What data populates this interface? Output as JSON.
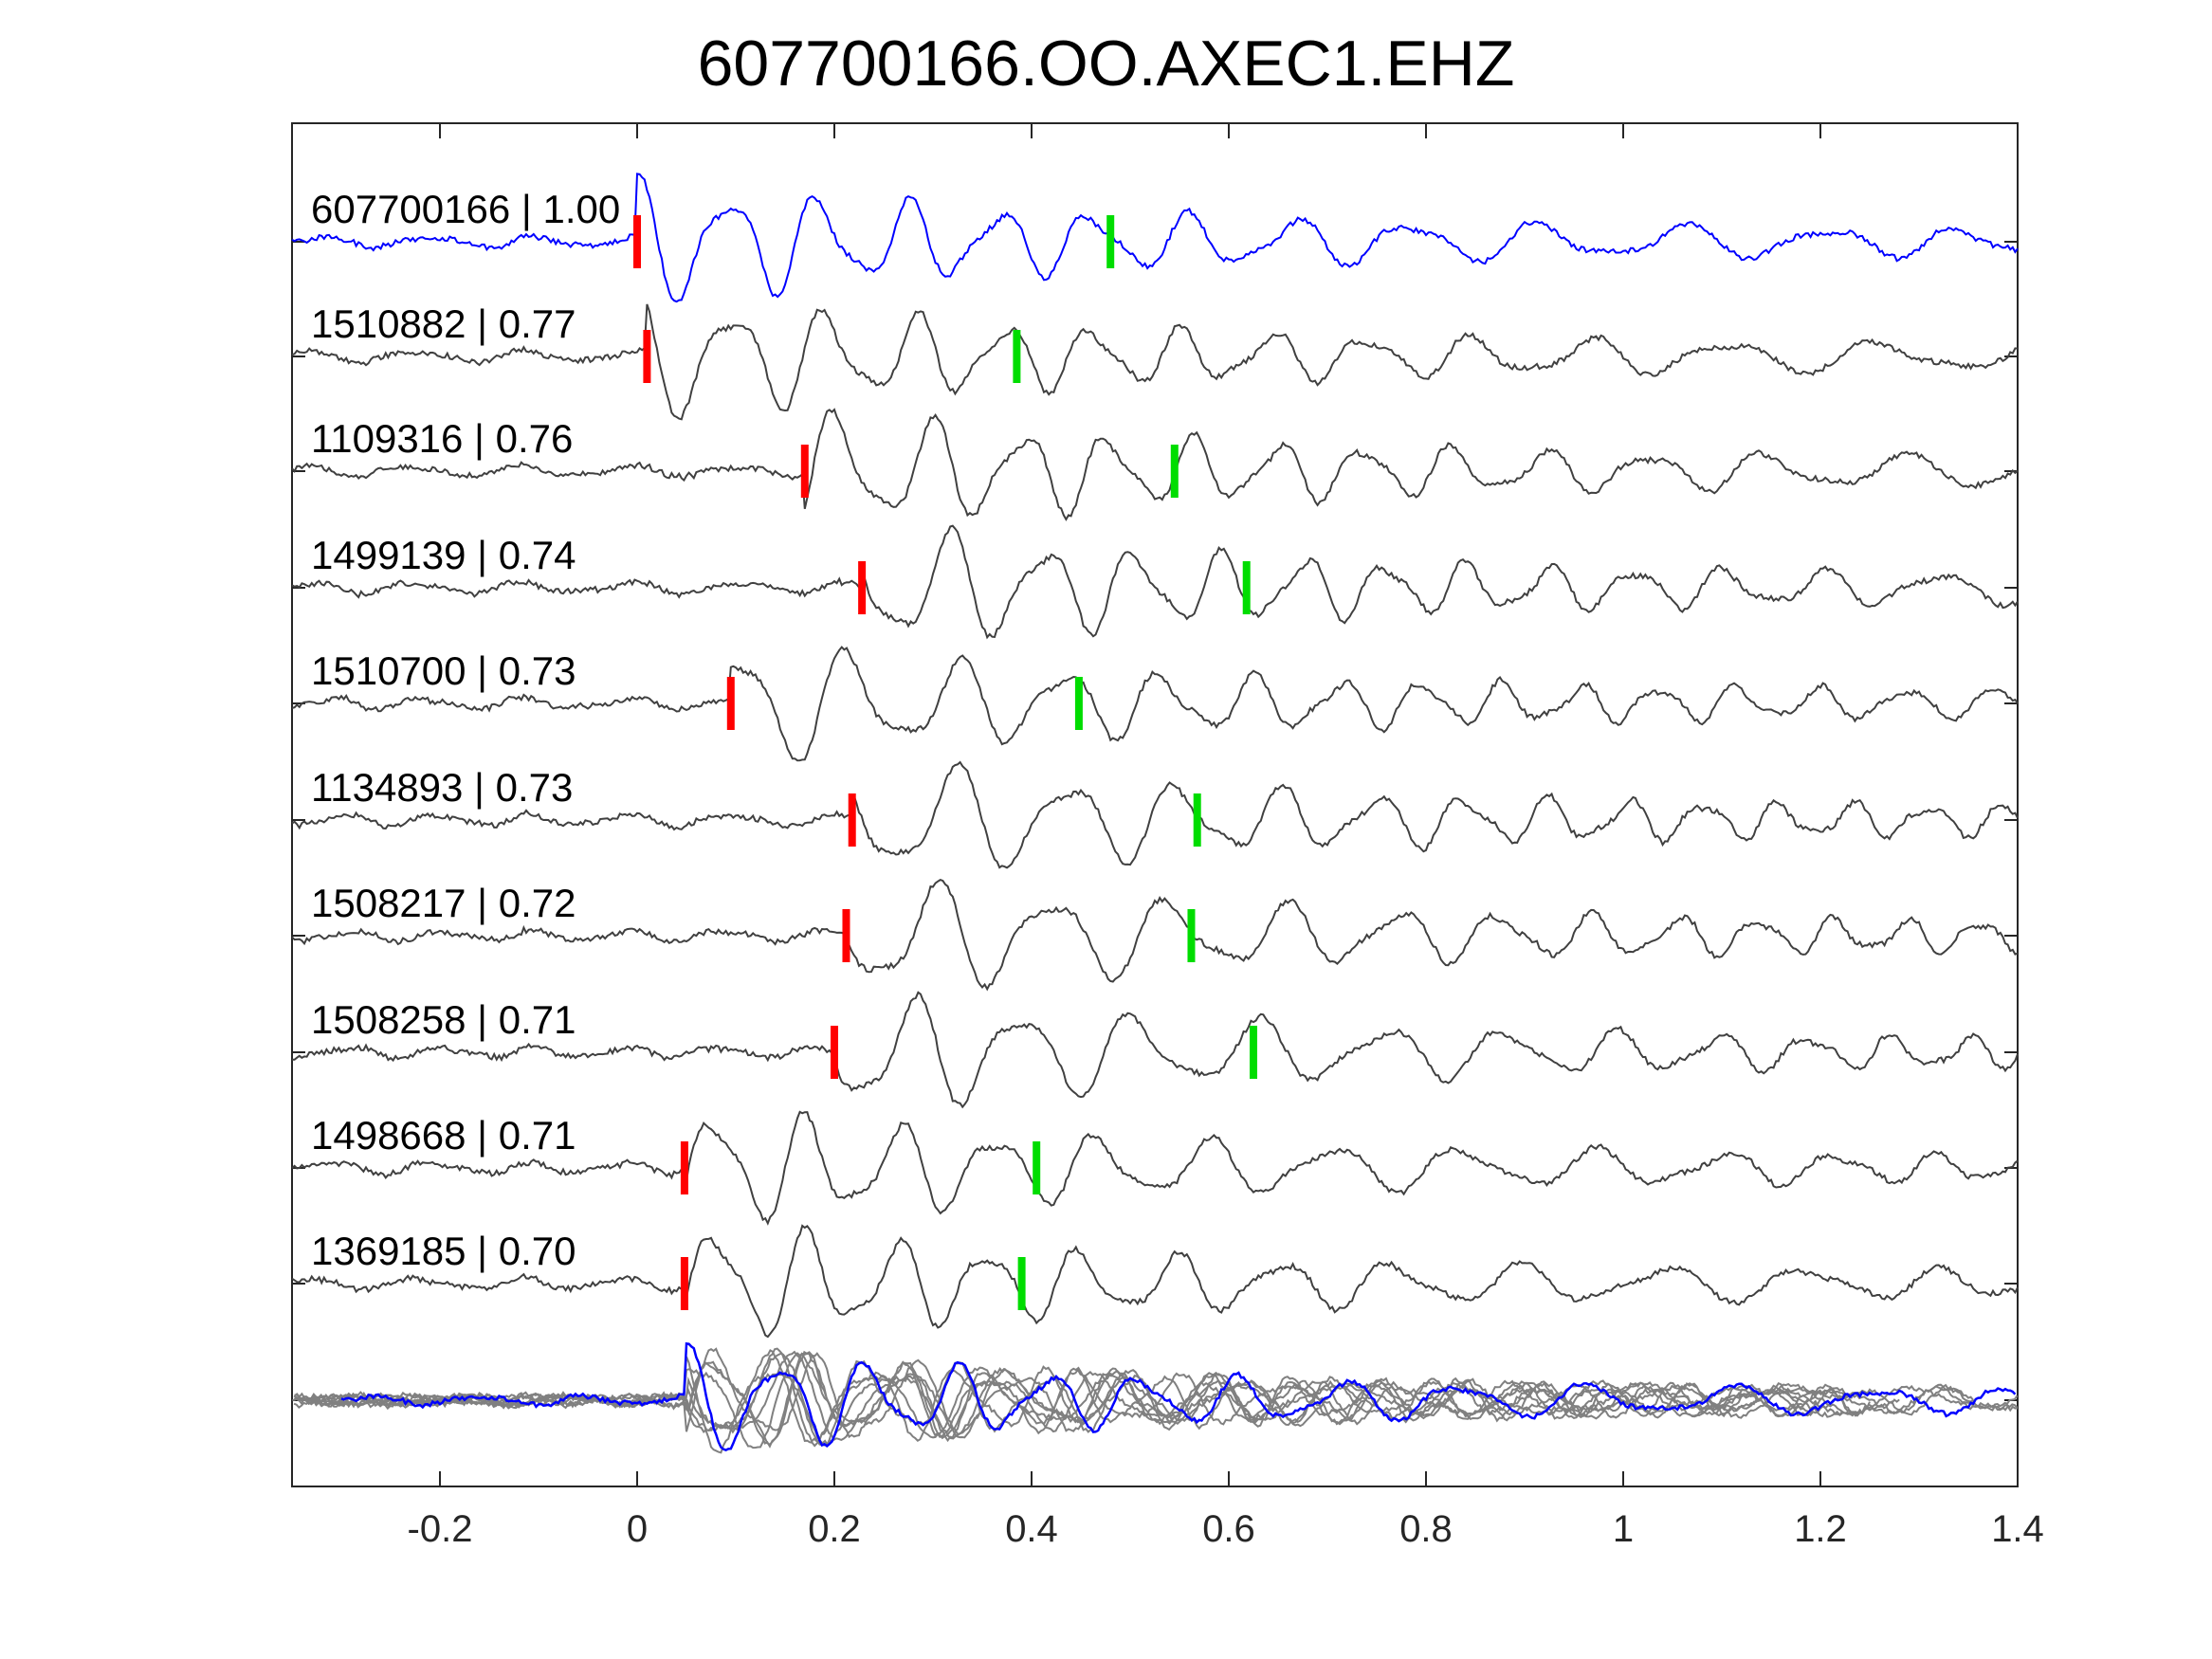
{
  "chart_data": {
    "type": "line",
    "title": "607700166.OO.AXEC1.EHZ",
    "xlabel": "",
    "ylabel": "",
    "xlim": [
      -0.35,
      1.4
    ],
    "x_ticks": [
      -0.2,
      0,
      0.2,
      0.4,
      0.6,
      0.8,
      1,
      1.2,
      1.4
    ],
    "x_tick_labels": [
      "-0.2",
      "0",
      "0.2",
      "0.4",
      "0.6",
      "0.8",
      "1",
      "1.2",
      "1.4"
    ],
    "grid": false,
    "colors": {
      "template": "#0000ff",
      "trace": "#404040",
      "stack": "#808080",
      "p_pick": "#ff0000",
      "s_pick": "#00dd00"
    },
    "series": [
      {
        "label": "607700166 | 1.00",
        "p_pick": 0.0,
        "s_pick": 0.48,
        "onset": 0.0,
        "amplitude": 1.0,
        "template": true
      },
      {
        "label": "1510882 | 0.77",
        "p_pick": 0.01,
        "s_pick": 0.385,
        "onset": 0.01,
        "amplitude": 1.0
      },
      {
        "label": "1109316 | 0.76",
        "p_pick": 0.17,
        "s_pick": 0.545,
        "onset": 0.17,
        "amplitude": 1.0
      },
      {
        "label": "1499139 | 0.74",
        "p_pick": 0.228,
        "s_pick": 0.618,
        "onset": 0.228,
        "amplitude": 1.0
      },
      {
        "label": "1510700 | 0.73",
        "p_pick": 0.095,
        "s_pick": 0.448,
        "onset": 0.095,
        "amplitude": 1.0
      },
      {
        "label": "1134893 | 0.73",
        "p_pick": 0.218,
        "s_pick": 0.568,
        "onset": 0.218,
        "amplitude": 1.0
      },
      {
        "label": "1508217 | 0.72",
        "p_pick": 0.212,
        "s_pick": 0.562,
        "onset": 0.212,
        "amplitude": 1.0
      },
      {
        "label": "1508258 | 0.71",
        "p_pick": 0.2,
        "s_pick": 0.625,
        "onset": 0.2,
        "amplitude": 1.0
      },
      {
        "label": "1498668 | 0.71",
        "p_pick": 0.048,
        "s_pick": 0.405,
        "onset": 0.048,
        "amplitude": 1.0
      },
      {
        "label": "1369185 | 0.70",
        "p_pick": 0.048,
        "s_pick": 0.39,
        "onset": 0.048,
        "amplitude": 1.0
      }
    ],
    "stack": {
      "label": "",
      "description_visible": false
    }
  }
}
